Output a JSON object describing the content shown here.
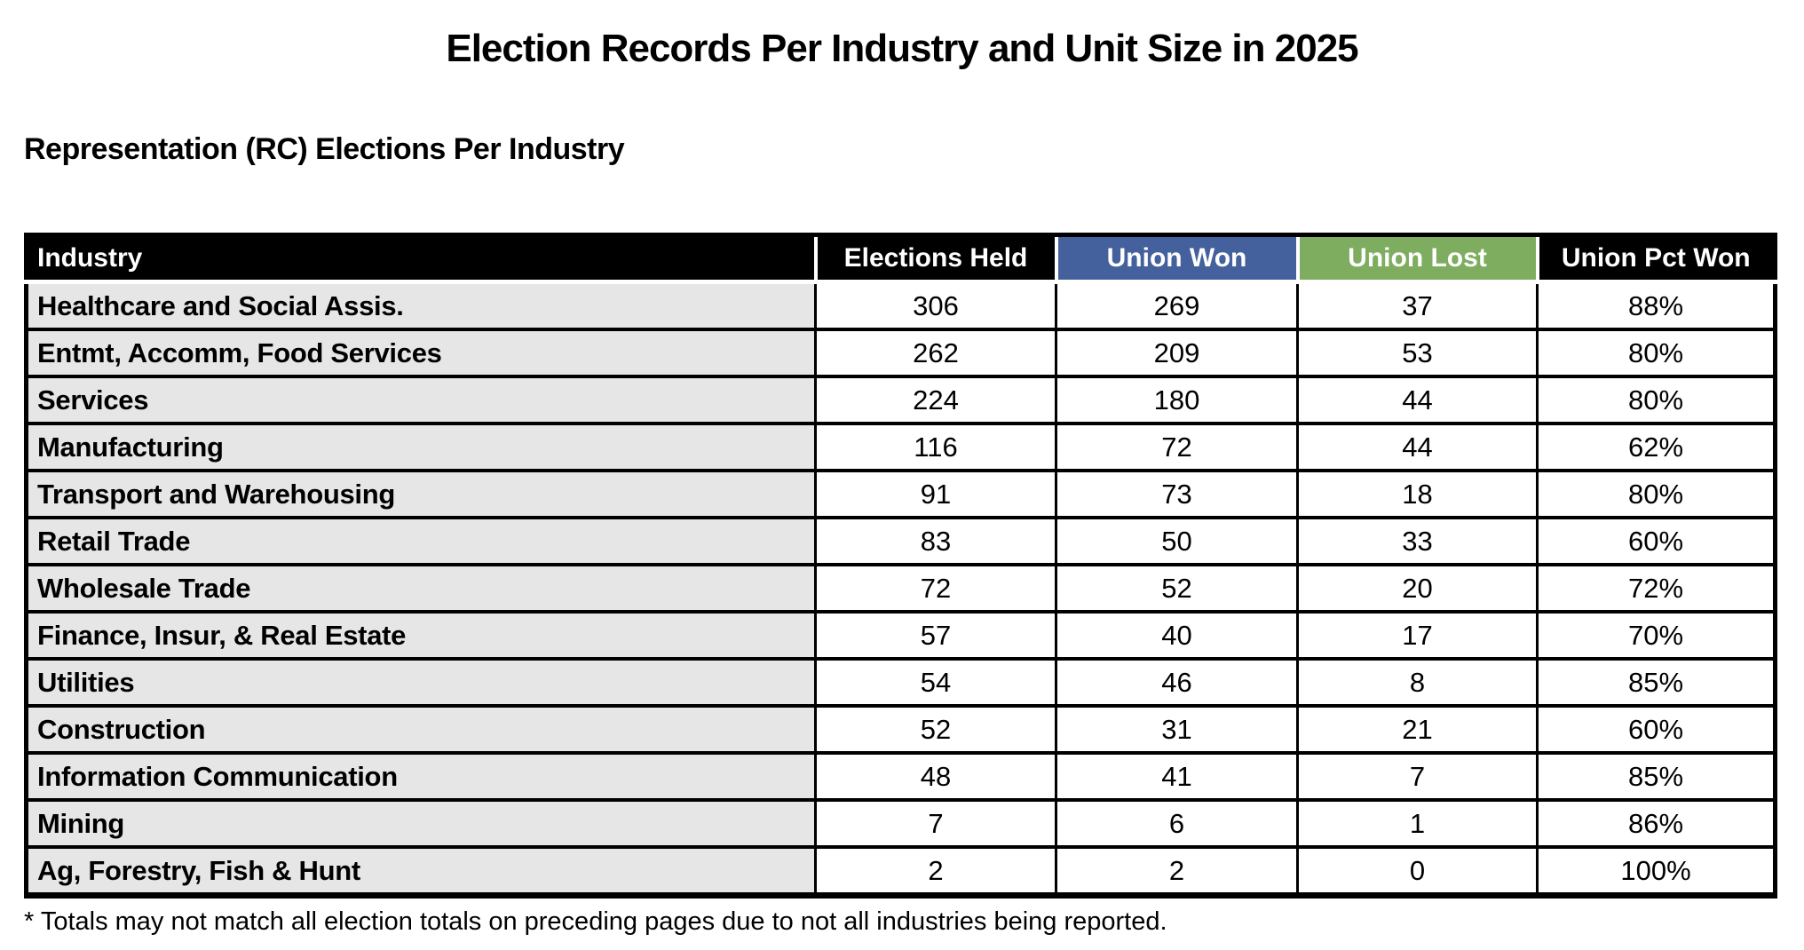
{
  "page": {
    "title": "Election Records Per Industry and Unit Size in 2025",
    "subtitle": "Representation (RC) Elections Per Industry",
    "footnote": "* Totals may not match all election totals on preceding pages due to not all industries being reported."
  },
  "colors": {
    "header_bg": "#000000",
    "header_text": "#FFFFFF",
    "union_won_bg": "#44619D",
    "union_lost_bg": "#7EAD60",
    "industry_cell_bg": "#E6E6E6",
    "grid_color": "#000000"
  },
  "table": {
    "columns": [
      "Industry",
      "Elections Held",
      "Union Won",
      "Union Lost",
      "Union Pct Won"
    ],
    "rows": [
      [
        "Healthcare and Social Assis.",
        "306",
        "269",
        "37",
        "88%"
      ],
      [
        "Entmt, Accomm, Food Services",
        "262",
        "209",
        "53",
        "80%"
      ],
      [
        "Services",
        "224",
        "180",
        "44",
        "80%"
      ],
      [
        "Manufacturing",
        "116",
        "72",
        "44",
        "62%"
      ],
      [
        "Transport and Warehousing",
        "91",
        "73",
        "18",
        "80%"
      ],
      [
        "Retail Trade",
        "83",
        "50",
        "33",
        "60%"
      ],
      [
        "Wholesale Trade",
        "72",
        "52",
        "20",
        "72%"
      ],
      [
        "Finance, Insur, & Real Estate",
        "57",
        "40",
        "17",
        "70%"
      ],
      [
        "Utilities",
        "54",
        "46",
        "8",
        "85%"
      ],
      [
        "Construction",
        "52",
        "31",
        "21",
        "60%"
      ],
      [
        "Information Communication",
        "48",
        "41",
        "7",
        "85%"
      ],
      [
        "Mining",
        "7",
        "6",
        "1",
        "86%"
      ],
      [
        "Ag, Forestry, Fish & Hunt",
        "2",
        "2",
        "0",
        "100%"
      ]
    ]
  }
}
